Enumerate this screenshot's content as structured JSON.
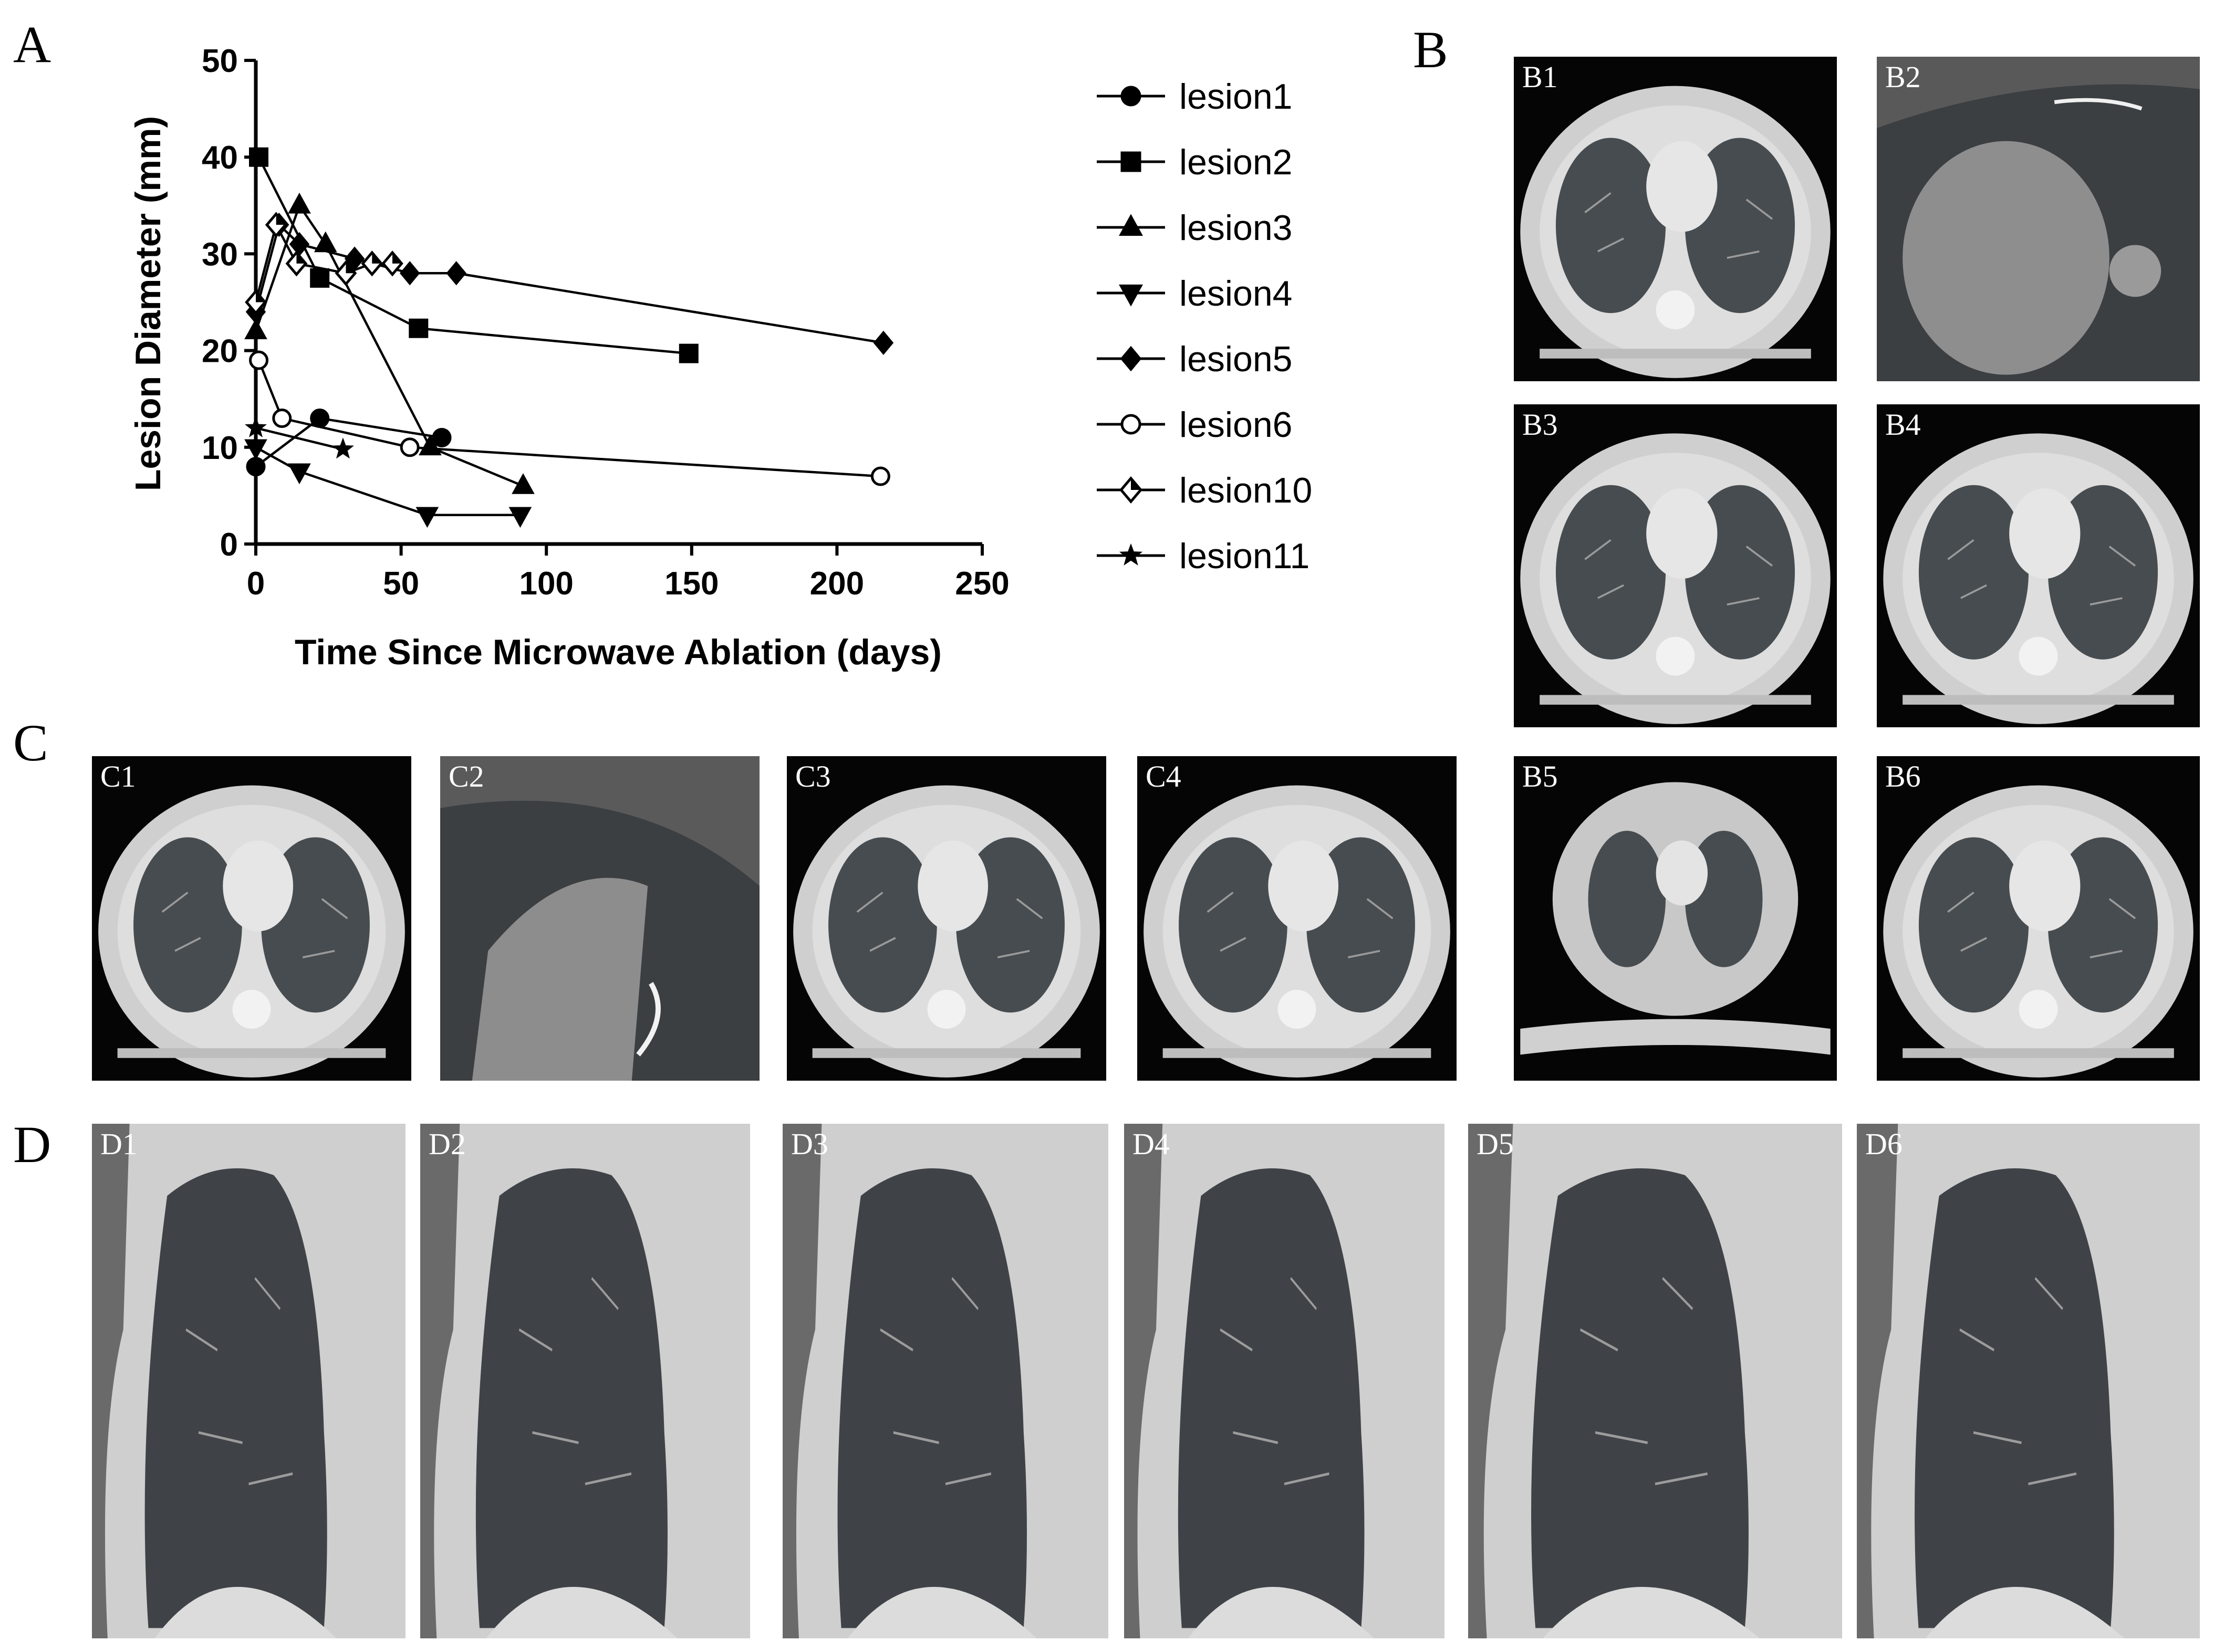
{
  "panel_labels": {
    "a": "A",
    "b": "B",
    "c": "C",
    "d": "D"
  },
  "chart_data": {
    "type": "line",
    "xlabel": "Time Since Microwave Ablation (days)",
    "ylabel": "Lesion Diameter (mm)",
    "xlim": [
      0,
      250
    ],
    "ylim": [
      0,
      50
    ],
    "xticks": [
      0,
      50,
      100,
      150,
      200,
      250
    ],
    "yticks": [
      0,
      10,
      20,
      30,
      40,
      50
    ],
    "grid": false,
    "legend_position": "right",
    "series": [
      {
        "name": "lesion1",
        "marker": "circle",
        "points": [
          [
            0,
            8
          ],
          [
            22,
            13
          ],
          [
            64,
            11
          ]
        ]
      },
      {
        "name": "lesion2",
        "marker": "square",
        "points": [
          [
            1,
            40
          ],
          [
            22,
            27.5
          ],
          [
            56,
            22.3
          ],
          [
            149,
            19.7
          ]
        ]
      },
      {
        "name": "lesion3",
        "marker": "triangle-up",
        "points": [
          [
            0,
            22
          ],
          [
            15,
            35
          ],
          [
            24,
            31
          ],
          [
            60,
            10
          ],
          [
            92,
            6
          ]
        ]
      },
      {
        "name": "lesion4",
        "marker": "triangle-down",
        "points": [
          [
            0,
            10
          ],
          [
            15,
            7.5
          ],
          [
            59,
            3
          ],
          [
            91,
            3
          ]
        ]
      },
      {
        "name": "lesion5",
        "marker": "diamond",
        "points": [
          [
            0,
            24
          ],
          [
            8,
            33
          ],
          [
            15,
            31
          ],
          [
            34,
            29.5
          ],
          [
            53,
            28
          ],
          [
            69,
            28
          ],
          [
            216,
            20.8
          ]
        ]
      },
      {
        "name": "lesion6",
        "marker": "open-circle",
        "points": [
          [
            1,
            19
          ],
          [
            9,
            13
          ],
          [
            53,
            10
          ],
          [
            215,
            7
          ]
        ]
      },
      {
        "name": "lesion10",
        "marker": "open-diamond",
        "points": [
          [
            0,
            25
          ],
          [
            7,
            33
          ],
          [
            14,
            29
          ],
          [
            31,
            28
          ],
          [
            40,
            29
          ],
          [
            47,
            29
          ]
        ]
      },
      {
        "name": "lesion11",
        "marker": "star",
        "points": [
          [
            0,
            12
          ],
          [
            30,
            9.8
          ]
        ]
      }
    ]
  },
  "scans": [
    {
      "label": "B1",
      "kind": "axial"
    },
    {
      "label": "B2",
      "kind": "zoom"
    },
    {
      "label": "B3",
      "kind": "axial"
    },
    {
      "label": "B4",
      "kind": "axial"
    },
    {
      "label": "B5",
      "kind": "small-axial"
    },
    {
      "label": "B6",
      "kind": "axial"
    },
    {
      "label": "C1",
      "kind": "axial"
    },
    {
      "label": "C2",
      "kind": "zoom"
    },
    {
      "label": "C3",
      "kind": "axial"
    },
    {
      "label": "C4",
      "kind": "axial"
    },
    {
      "label": "D1",
      "kind": "sagittal"
    },
    {
      "label": "D2",
      "kind": "sagittal"
    },
    {
      "label": "D3",
      "kind": "sagittal"
    },
    {
      "label": "D4",
      "kind": "sagittal"
    },
    {
      "label": "D5",
      "kind": "sagittal"
    },
    {
      "label": "D6",
      "kind": "sagittal"
    }
  ]
}
